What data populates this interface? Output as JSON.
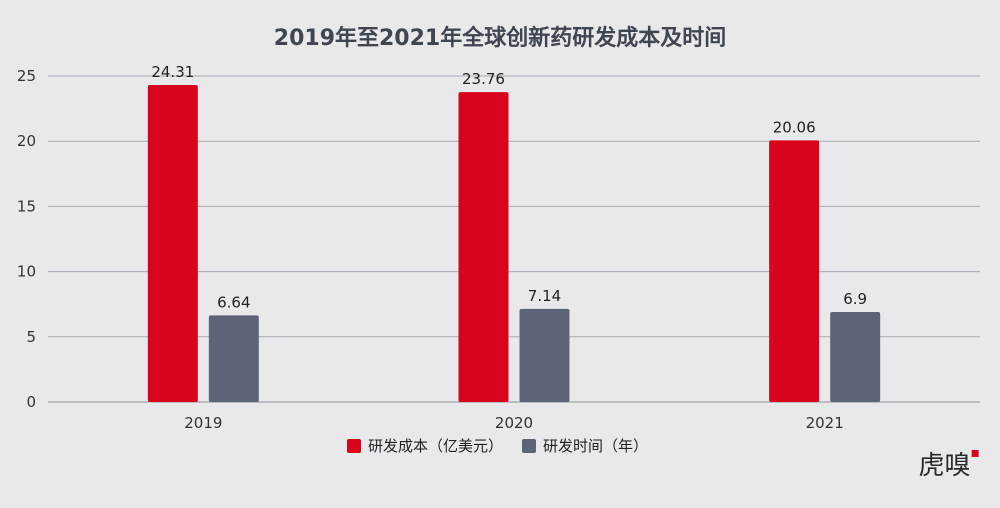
{
  "chart_data": {
    "type": "bar",
    "title": "2019年至2021年全球创新药研发成本及时间",
    "categories": [
      "2019",
      "2020",
      "2021"
    ],
    "series": [
      {
        "name": "研发成本（亿美元）",
        "color": "#d8041c",
        "values": [
          24.31,
          23.76,
          20.06
        ]
      },
      {
        "name": "研发时间（年）",
        "color": "#5e6478",
        "values": [
          6.64,
          7.14,
          6.9
        ]
      }
    ],
    "data_labels": [
      [
        "24.31",
        "23.76",
        "20.06"
      ],
      [
        "6.64",
        "7.14",
        "6.9"
      ]
    ],
    "ylim": [
      0,
      25
    ],
    "yticks": [
      0,
      5,
      10,
      15,
      20,
      25
    ],
    "xlabel": "",
    "ylabel": "",
    "grid": true,
    "legend_position": "bottom"
  },
  "watermark": {
    "text": "虎嗅",
    "accent_color": "#d8041c"
  }
}
